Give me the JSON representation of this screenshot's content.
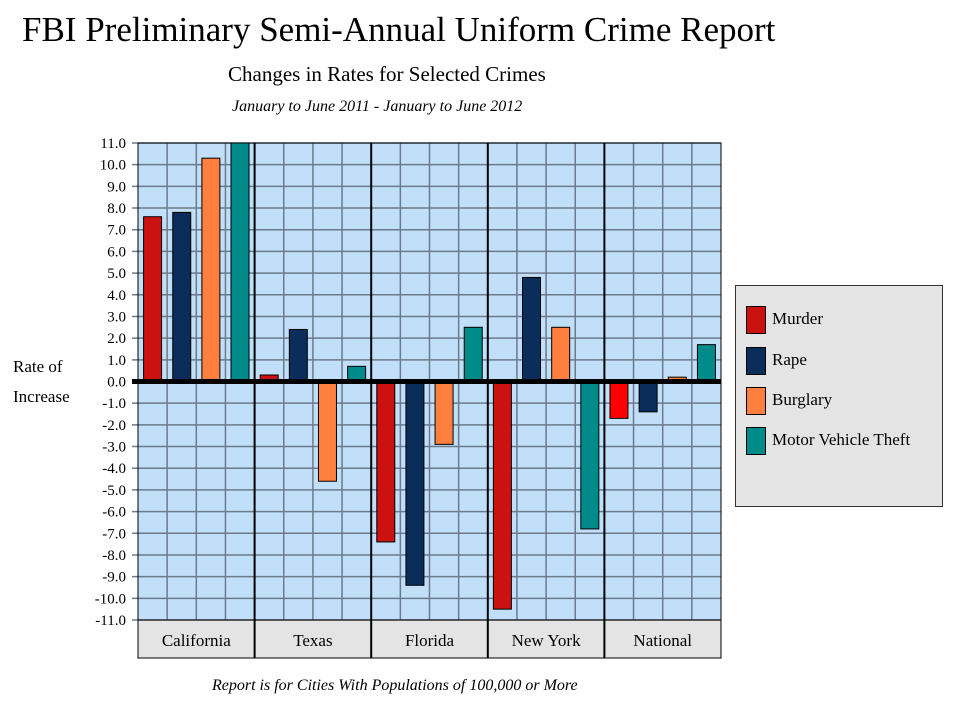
{
  "chart_data": {
    "type": "bar",
    "title": "FBI Preliminary Semi-Annual Uniform Crime Report",
    "subtitle": "Changes in Rates for Selected Crimes",
    "period": "January to June 2011 - January to June 2012",
    "footnote": "Report is for Cities With Populations of 100,000 or More",
    "ylabel_line1": "Rate of",
    "ylabel_line2": "Increase",
    "xlabel": "",
    "ylim": [
      -11,
      11
    ],
    "ytick_step": 1,
    "grid": true,
    "legend_position": "right",
    "categories": [
      "California",
      "Texas",
      "Florida",
      "New York",
      "National"
    ],
    "series": [
      {
        "name": "Murder",
        "color": "#cc1111",
        "values": [
          7.6,
          0.3,
          -7.4,
          -10.5,
          -1.7
        ]
      },
      {
        "name": "Rape",
        "color": "#0a2d5a",
        "values": [
          7.8,
          2.4,
          -9.4,
          4.8,
          -1.4
        ]
      },
      {
        "name": "Burglary",
        "color": "#ff7f3f",
        "values": [
          10.3,
          -4.6,
          -2.9,
          2.5,
          0.2
        ]
      },
      {
        "name": "Motor Vehicle Theft",
        "color": "#008b8b",
        "values": [
          11.0,
          0.7,
          2.5,
          -6.8,
          1.7
        ]
      }
    ],
    "color_overrides": [
      {
        "series": 0,
        "category": 4,
        "color": "#ff0000"
      }
    ],
    "plot_background": "#c2dffa",
    "category_band_color": "#e4e4e4"
  }
}
